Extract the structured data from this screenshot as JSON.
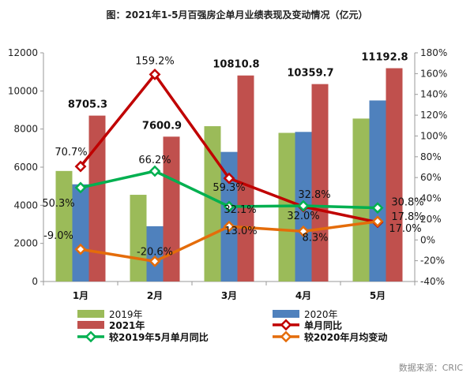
{
  "chart_data": {
    "type": "bar",
    "title": "图：2021年1-5月百强房企单月业绩表现及变动情况（亿元）",
    "categories": [
      "1月",
      "2月",
      "3月",
      "4月",
      "5月"
    ],
    "ylim": [
      0,
      12000
    ],
    "y2lim": [
      -40,
      180
    ],
    "yticks": [
      0,
      2000,
      4000,
      6000,
      8000,
      10000,
      12000
    ],
    "y2ticks": [
      "-40%",
      "-20%",
      "0%",
      "20%",
      "40%",
      "60%",
      "80%",
      "100%",
      "120%",
      "140%",
      "160%",
      "180%"
    ],
    "bars": [
      {
        "name": "2019年",
        "color": "#9bbb59",
        "values": [
          5800,
          4550,
          8150,
          7800,
          8550
        ]
      },
      {
        "name": "2020年",
        "color": "#4f81bd",
        "values": [
          5100,
          2900,
          6800,
          7850,
          9500
        ]
      },
      {
        "name": "2021年",
        "color": "#c0504d",
        "values": [
          8705.3,
          7600.9,
          10810.8,
          10359.7,
          11192.8
        ],
        "labels": [
          "8705.3",
          "7600.9",
          "10810.8",
          "10359.7",
          "11192.8"
        ]
      }
    ],
    "lines": [
      {
        "name": "单月同比",
        "color": "#c00000",
        "values": [
          70.7,
          159.2,
          59.3,
          32.0,
          17.0
        ],
        "labels": [
          "70.7%",
          "159.2%",
          "59.3%",
          "32.0%",
          "17.0%"
        ]
      },
      {
        "name": "较2019年5月单月同比",
        "color": "#00b050",
        "values": [
          50.3,
          66.2,
          32.1,
          32.8,
          30.8
        ],
        "labels": [
          "50.3%",
          "66.2%",
          "32.1%",
          "32.8%",
          "30.8%"
        ]
      },
      {
        "name": "较2020年月均变动",
        "color": "#e46c0a",
        "values": [
          -9.0,
          -20.6,
          13.0,
          8.3,
          17.8
        ],
        "labels": [
          "-9.0%",
          "-20.6%",
          "13.0%",
          "8.3%",
          "17.8%"
        ]
      }
    ]
  },
  "source": "数据来源：CRIC"
}
